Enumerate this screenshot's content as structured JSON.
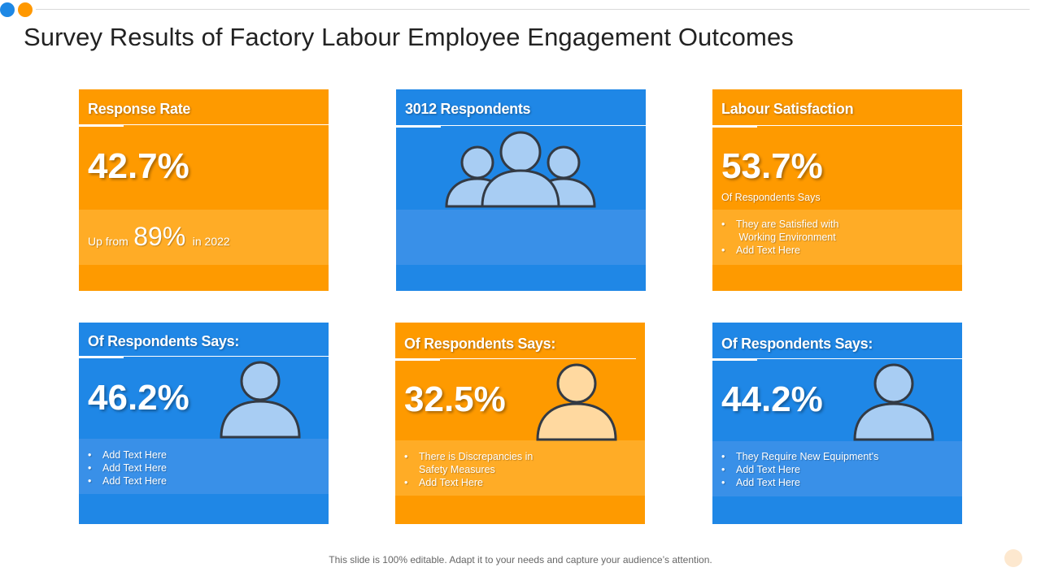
{
  "title": "Survey Results of Factory Labour Employee Engagement Outcomes",
  "footer": "This slide is 100% editable. Adapt it to your needs and capture your audience’s attention.",
  "colors": {
    "orange": "#fe9a00",
    "blue": "#1f87e6",
    "icon_blue_fill": "#a8cdf3",
    "icon_orange_fill": "#ffd9a0",
    "icon_stroke": "#333a44"
  },
  "cards": {
    "response": {
      "title": "Response Rate",
      "value": "42.7%",
      "up_prefix": "Up from",
      "up_value": "89%",
      "up_suffix": "in 2022"
    },
    "respondents": {
      "title": "3012 Respondents",
      "icon": "group-icon"
    },
    "satisfaction": {
      "title": "Labour Satisfaction",
      "value": "53.7%",
      "subtitle": "Of Respondents Says",
      "bullets": [
        "They are Satisfied with\n Working Environment",
        "Add Text Here"
      ]
    },
    "card4": {
      "title": "Of Respondents Says:",
      "value": "46.2%",
      "icon": "person-icon",
      "bullets": [
        "Add Text Here",
        "Add Text Here",
        "Add Text Here"
      ]
    },
    "card5": {
      "title": "Of Respondents Says:",
      "value": "32.5%",
      "icon": "person-icon",
      "bullets": [
        "There is Discrepancies in\nSafety Measures",
        "Add Text Here"
      ]
    },
    "card6": {
      "title": "Of Respondents Says:",
      "value": "44.2%",
      "icon": "person-icon",
      "bullets": [
        "They Require New Equipment's",
        "Add Text Here",
        "Add Text Here"
      ]
    }
  }
}
